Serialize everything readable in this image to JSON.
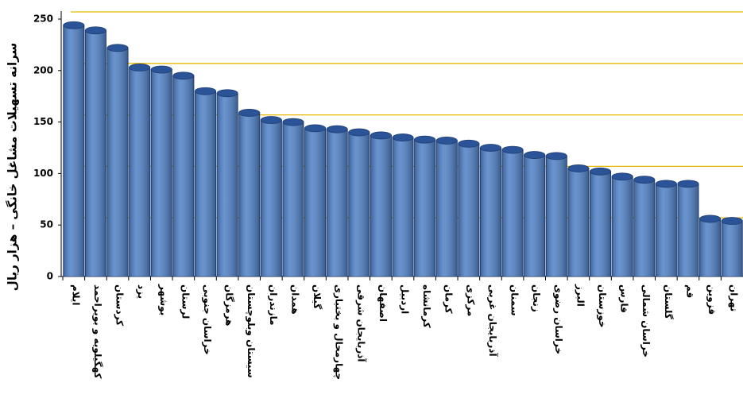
{
  "chart_data": {
    "type": "bar",
    "y_label": "سرانه تسهیلات مشاغل خانگی – هزار ریال",
    "categories": [
      "ایلام",
      "کهگیلویه و بویراحمد",
      "کردستان",
      "یزد",
      "بوشهر",
      "لرستان",
      "خراسان جنوبی",
      "هرمزگان",
      "سیستان وبلوچستان",
      "مازندران",
      "همدان",
      "گیلان",
      "چهارمحال و بختیاری",
      "آذربایجان شرقی",
      "اصفهان",
      "اردبیل",
      "کرمانشاه",
      "کرمان",
      "مرکزی",
      "آذربایجان غربی",
      "سمنان",
      "زنجان",
      "خراسان رضوی",
      "البرز",
      "خوزستان",
      "فارس",
      "خراسان شمالی",
      "گلستان",
      "قم",
      "قزوین",
      "تهران"
    ],
    "values": [
      244,
      239,
      222,
      203,
      201,
      195,
      180,
      178,
      159,
      152,
      150,
      144,
      143,
      140,
      137,
      135,
      133,
      132,
      129,
      125,
      123,
      118,
      117,
      105,
      102,
      97,
      94,
      90,
      90,
      56,
      54
    ],
    "color": "#4f81c7",
    "ylim": [
      0,
      250
    ],
    "yticks": [
      0,
      50,
      100,
      150,
      200,
      250
    ],
    "grid": true,
    "grid_color": "#e6b800"
  }
}
